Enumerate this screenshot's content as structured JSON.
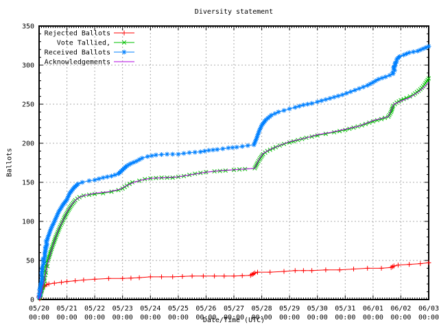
{
  "chart_data": {
    "type": "line",
    "title": "Diversity statement",
    "xlabel": "Date/Time (UTC)",
    "ylabel": "Ballots",
    "ylim": [
      0,
      350
    ],
    "ytick_step": 50,
    "ytick_minor_step": 10,
    "x_days": 14,
    "x_minor_per_day": 12,
    "grid": true,
    "legend_position": "top-left-inside",
    "grid_color": "#a8a8a8",
    "border_color": "#000000",
    "xtick_time": "00:00",
    "xtick_dates": [
      "05/20",
      "05/21",
      "05/22",
      "05/23",
      "05/24",
      "05/25",
      "05/26",
      "05/27",
      "05/28",
      "05/29",
      "05/30",
      "05/31",
      "06/01",
      "06/02",
      "06/03"
    ],
    "series": [
      {
        "name": "Rejected Ballots",
        "color": "#ff0000",
        "marker": "plus",
        "points": [
          [
            0,
            0
          ],
          [
            0.03,
            6
          ],
          [
            0.07,
            11
          ],
          [
            0.12,
            15
          ],
          [
            0.2,
            18
          ],
          [
            0.35,
            20
          ],
          [
            0.55,
            21
          ],
          [
            0.8,
            22
          ],
          [
            1.0,
            23
          ],
          [
            1.3,
            24
          ],
          [
            1.6,
            25
          ],
          [
            2.0,
            26
          ],
          [
            2.5,
            27
          ],
          [
            3.0,
            27
          ],
          [
            3.6,
            28
          ],
          [
            4.0,
            29
          ],
          [
            4.8,
            29
          ],
          [
            5.5,
            30
          ],
          [
            6.3,
            30
          ],
          [
            7.0,
            30
          ],
          [
            7.6,
            31
          ],
          [
            7.75,
            34
          ],
          [
            7.85,
            35
          ],
          [
            8.3,
            35
          ],
          [
            8.8,
            36
          ],
          [
            9.2,
            37
          ],
          [
            9.8,
            37
          ],
          [
            10.3,
            38
          ],
          [
            10.8,
            38
          ],
          [
            11.3,
            39
          ],
          [
            11.8,
            40
          ],
          [
            12.3,
            40
          ],
          [
            12.65,
            41
          ],
          [
            12.75,
            43
          ],
          [
            12.9,
            44
          ],
          [
            13.3,
            45
          ],
          [
            13.7,
            46
          ],
          [
            14.0,
            47
          ]
        ]
      },
      {
        "name": "Vote Tallied,",
        "color": "#00c000",
        "marker": "cross",
        "points": [
          [
            0,
            0
          ],
          [
            0.1,
            12
          ],
          [
            0.2,
            30
          ],
          [
            0.3,
            48
          ],
          [
            0.45,
            65
          ],
          [
            0.6,
            80
          ],
          [
            0.75,
            93
          ],
          [
            0.9,
            104
          ],
          [
            1.0,
            111
          ],
          [
            1.15,
            120
          ],
          [
            1.3,
            127
          ],
          [
            1.45,
            131
          ],
          [
            1.6,
            133
          ],
          [
            1.8,
            134
          ],
          [
            2.0,
            135
          ],
          [
            2.3,
            136
          ],
          [
            2.6,
            138
          ],
          [
            2.85,
            140
          ],
          [
            3.0,
            142
          ],
          [
            3.15,
            146
          ],
          [
            3.35,
            150
          ],
          [
            3.6,
            152
          ],
          [
            3.8,
            154
          ],
          [
            4.0,
            155
          ],
          [
            4.4,
            156
          ],
          [
            4.8,
            156
          ],
          [
            5.2,
            158
          ],
          [
            5.6,
            161
          ],
          [
            6.0,
            163
          ],
          [
            6.3,
            164
          ],
          [
            6.7,
            165
          ],
          [
            7.0,
            166
          ],
          [
            7.4,
            167
          ],
          [
            7.75,
            168
          ],
          [
            7.85,
            175
          ],
          [
            7.95,
            181
          ],
          [
            8.05,
            186
          ],
          [
            8.2,
            190
          ],
          [
            8.5,
            195
          ],
          [
            8.8,
            199
          ],
          [
            9.0,
            201
          ],
          [
            9.3,
            204
          ],
          [
            9.6,
            207
          ],
          [
            10.0,
            210
          ],
          [
            10.3,
            212
          ],
          [
            10.6,
            214
          ],
          [
            11.0,
            217
          ],
          [
            11.3,
            220
          ],
          [
            11.6,
            223
          ],
          [
            12.0,
            228
          ],
          [
            12.3,
            231
          ],
          [
            12.55,
            234
          ],
          [
            12.65,
            240
          ],
          [
            12.72,
            248
          ],
          [
            12.85,
            252
          ],
          [
            13.0,
            255
          ],
          [
            13.2,
            258
          ],
          [
            13.45,
            262
          ],
          [
            13.7,
            269
          ],
          [
            13.85,
            275
          ],
          [
            14.0,
            283
          ]
        ]
      },
      {
        "name": "Received Ballots",
        "color": "#0080ff",
        "marker": "asterisk",
        "points": [
          [
            0,
            0
          ],
          [
            0.05,
            15
          ],
          [
            0.12,
            38
          ],
          [
            0.2,
            62
          ],
          [
            0.3,
            78
          ],
          [
            0.42,
            90
          ],
          [
            0.55,
            100
          ],
          [
            0.7,
            112
          ],
          [
            0.85,
            121
          ],
          [
            1.0,
            128
          ],
          [
            1.1,
            136
          ],
          [
            1.25,
            143
          ],
          [
            1.4,
            148
          ],
          [
            1.55,
            150
          ],
          [
            1.8,
            152
          ],
          [
            2.0,
            153
          ],
          [
            2.3,
            156
          ],
          [
            2.6,
            158
          ],
          [
            2.85,
            161
          ],
          [
            3.0,
            166
          ],
          [
            3.15,
            171
          ],
          [
            3.3,
            174
          ],
          [
            3.5,
            177
          ],
          [
            3.7,
            181
          ],
          [
            3.9,
            183
          ],
          [
            4.2,
            185
          ],
          [
            4.6,
            186
          ],
          [
            5.0,
            186
          ],
          [
            5.4,
            188
          ],
          [
            5.8,
            189
          ],
          [
            6.1,
            191
          ],
          [
            6.4,
            192
          ],
          [
            6.8,
            194
          ],
          [
            7.1,
            195
          ],
          [
            7.5,
            197
          ],
          [
            7.72,
            198
          ],
          [
            7.8,
            205
          ],
          [
            7.9,
            215
          ],
          [
            8.0,
            223
          ],
          [
            8.15,
            230
          ],
          [
            8.35,
            236
          ],
          [
            8.6,
            240
          ],
          [
            8.8,
            242
          ],
          [
            9.0,
            244
          ],
          [
            9.2,
            246
          ],
          [
            9.5,
            249
          ],
          [
            9.8,
            251
          ],
          [
            10.0,
            253
          ],
          [
            10.3,
            256
          ],
          [
            10.6,
            259
          ],
          [
            10.9,
            262
          ],
          [
            11.2,
            266
          ],
          [
            11.5,
            270
          ],
          [
            11.8,
            274
          ],
          [
            12.0,
            278
          ],
          [
            12.2,
            282
          ],
          [
            12.45,
            285
          ],
          [
            12.6,
            287
          ],
          [
            12.72,
            289
          ],
          [
            12.78,
            298
          ],
          [
            12.85,
            307
          ],
          [
            12.95,
            311
          ],
          [
            13.1,
            313
          ],
          [
            13.3,
            316
          ],
          [
            13.6,
            318
          ],
          [
            13.8,
            321
          ],
          [
            14.0,
            324
          ]
        ]
      },
      {
        "name": "Acknowledgements",
        "color": "#b000e0",
        "marker": "none",
        "points": [
          [
            0,
            0
          ],
          [
            0.15,
            18
          ],
          [
            0.3,
            45
          ],
          [
            0.5,
            70
          ],
          [
            0.7,
            90
          ],
          [
            0.9,
            104
          ],
          [
            1.0,
            112
          ],
          [
            1.2,
            123
          ],
          [
            1.4,
            130
          ],
          [
            1.6,
            133
          ],
          [
            2.0,
            136
          ],
          [
            2.5,
            138
          ],
          [
            2.9,
            141
          ],
          [
            3.1,
            145
          ],
          [
            3.4,
            150
          ],
          [
            3.7,
            153
          ],
          [
            4.0,
            155
          ],
          [
            4.5,
            156
          ],
          [
            5.0,
            157
          ],
          [
            5.5,
            160
          ],
          [
            6.0,
            163
          ],
          [
            6.5,
            165
          ],
          [
            7.0,
            166
          ],
          [
            7.75,
            168
          ],
          [
            7.9,
            179
          ],
          [
            8.05,
            187
          ],
          [
            8.3,
            192
          ],
          [
            8.7,
            198
          ],
          [
            9.0,
            202
          ],
          [
            9.5,
            206
          ],
          [
            10.0,
            211
          ],
          [
            10.5,
            214
          ],
          [
            11.0,
            218
          ],
          [
            11.5,
            222
          ],
          [
            12.0,
            229
          ],
          [
            12.55,
            234
          ],
          [
            12.65,
            242
          ],
          [
            12.75,
            250
          ],
          [
            13.0,
            254
          ],
          [
            13.3,
            258
          ],
          [
            13.6,
            265
          ],
          [
            13.85,
            272
          ],
          [
            14.0,
            278
          ]
        ]
      }
    ]
  }
}
